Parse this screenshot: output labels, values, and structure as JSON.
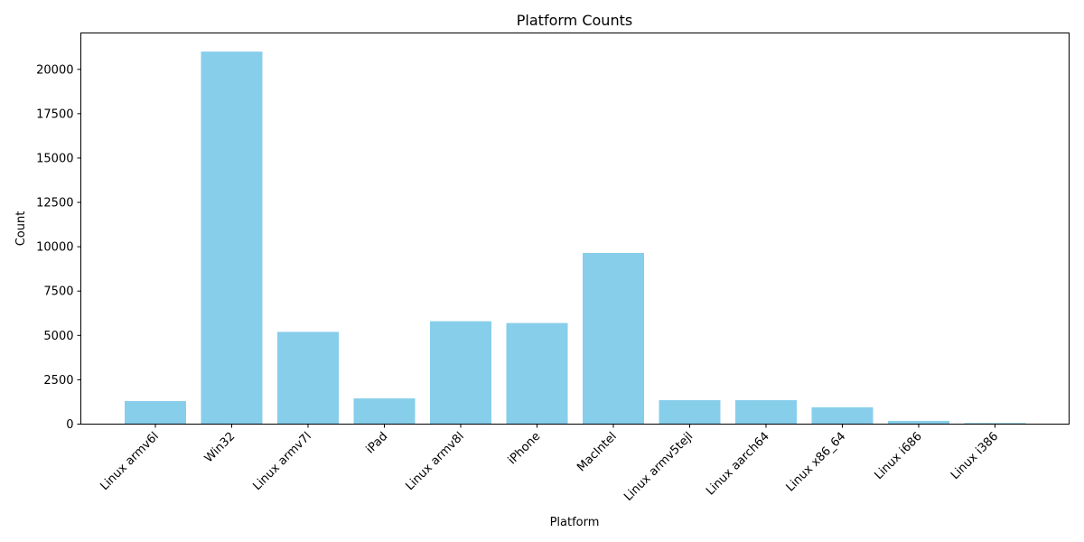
{
  "chart_data": {
    "type": "bar",
    "title": "Platform Counts",
    "xlabel": "Platform",
    "ylabel": "Count",
    "categories": [
      "Linux armv6l",
      "Win32",
      "Linux armv7l",
      "iPad",
      "Linux armv8l",
      "iPhone",
      "MacIntel",
      "Linux armv5tejl",
      "Linux aarch64",
      "Linux x86_64",
      "Linux i686",
      "Linux i386"
    ],
    "values": [
      1300,
      21000,
      5200,
      1450,
      5800,
      5700,
      9650,
      1350,
      1350,
      950,
      180,
      60
    ],
    "ylim": [
      0,
      22050
    ],
    "yticks": [
      0,
      2500,
      5000,
      7500,
      10000,
      12500,
      15000,
      17500,
      20000
    ],
    "bar_color": "#87CEEB",
    "grid": false,
    "legend": false
  }
}
